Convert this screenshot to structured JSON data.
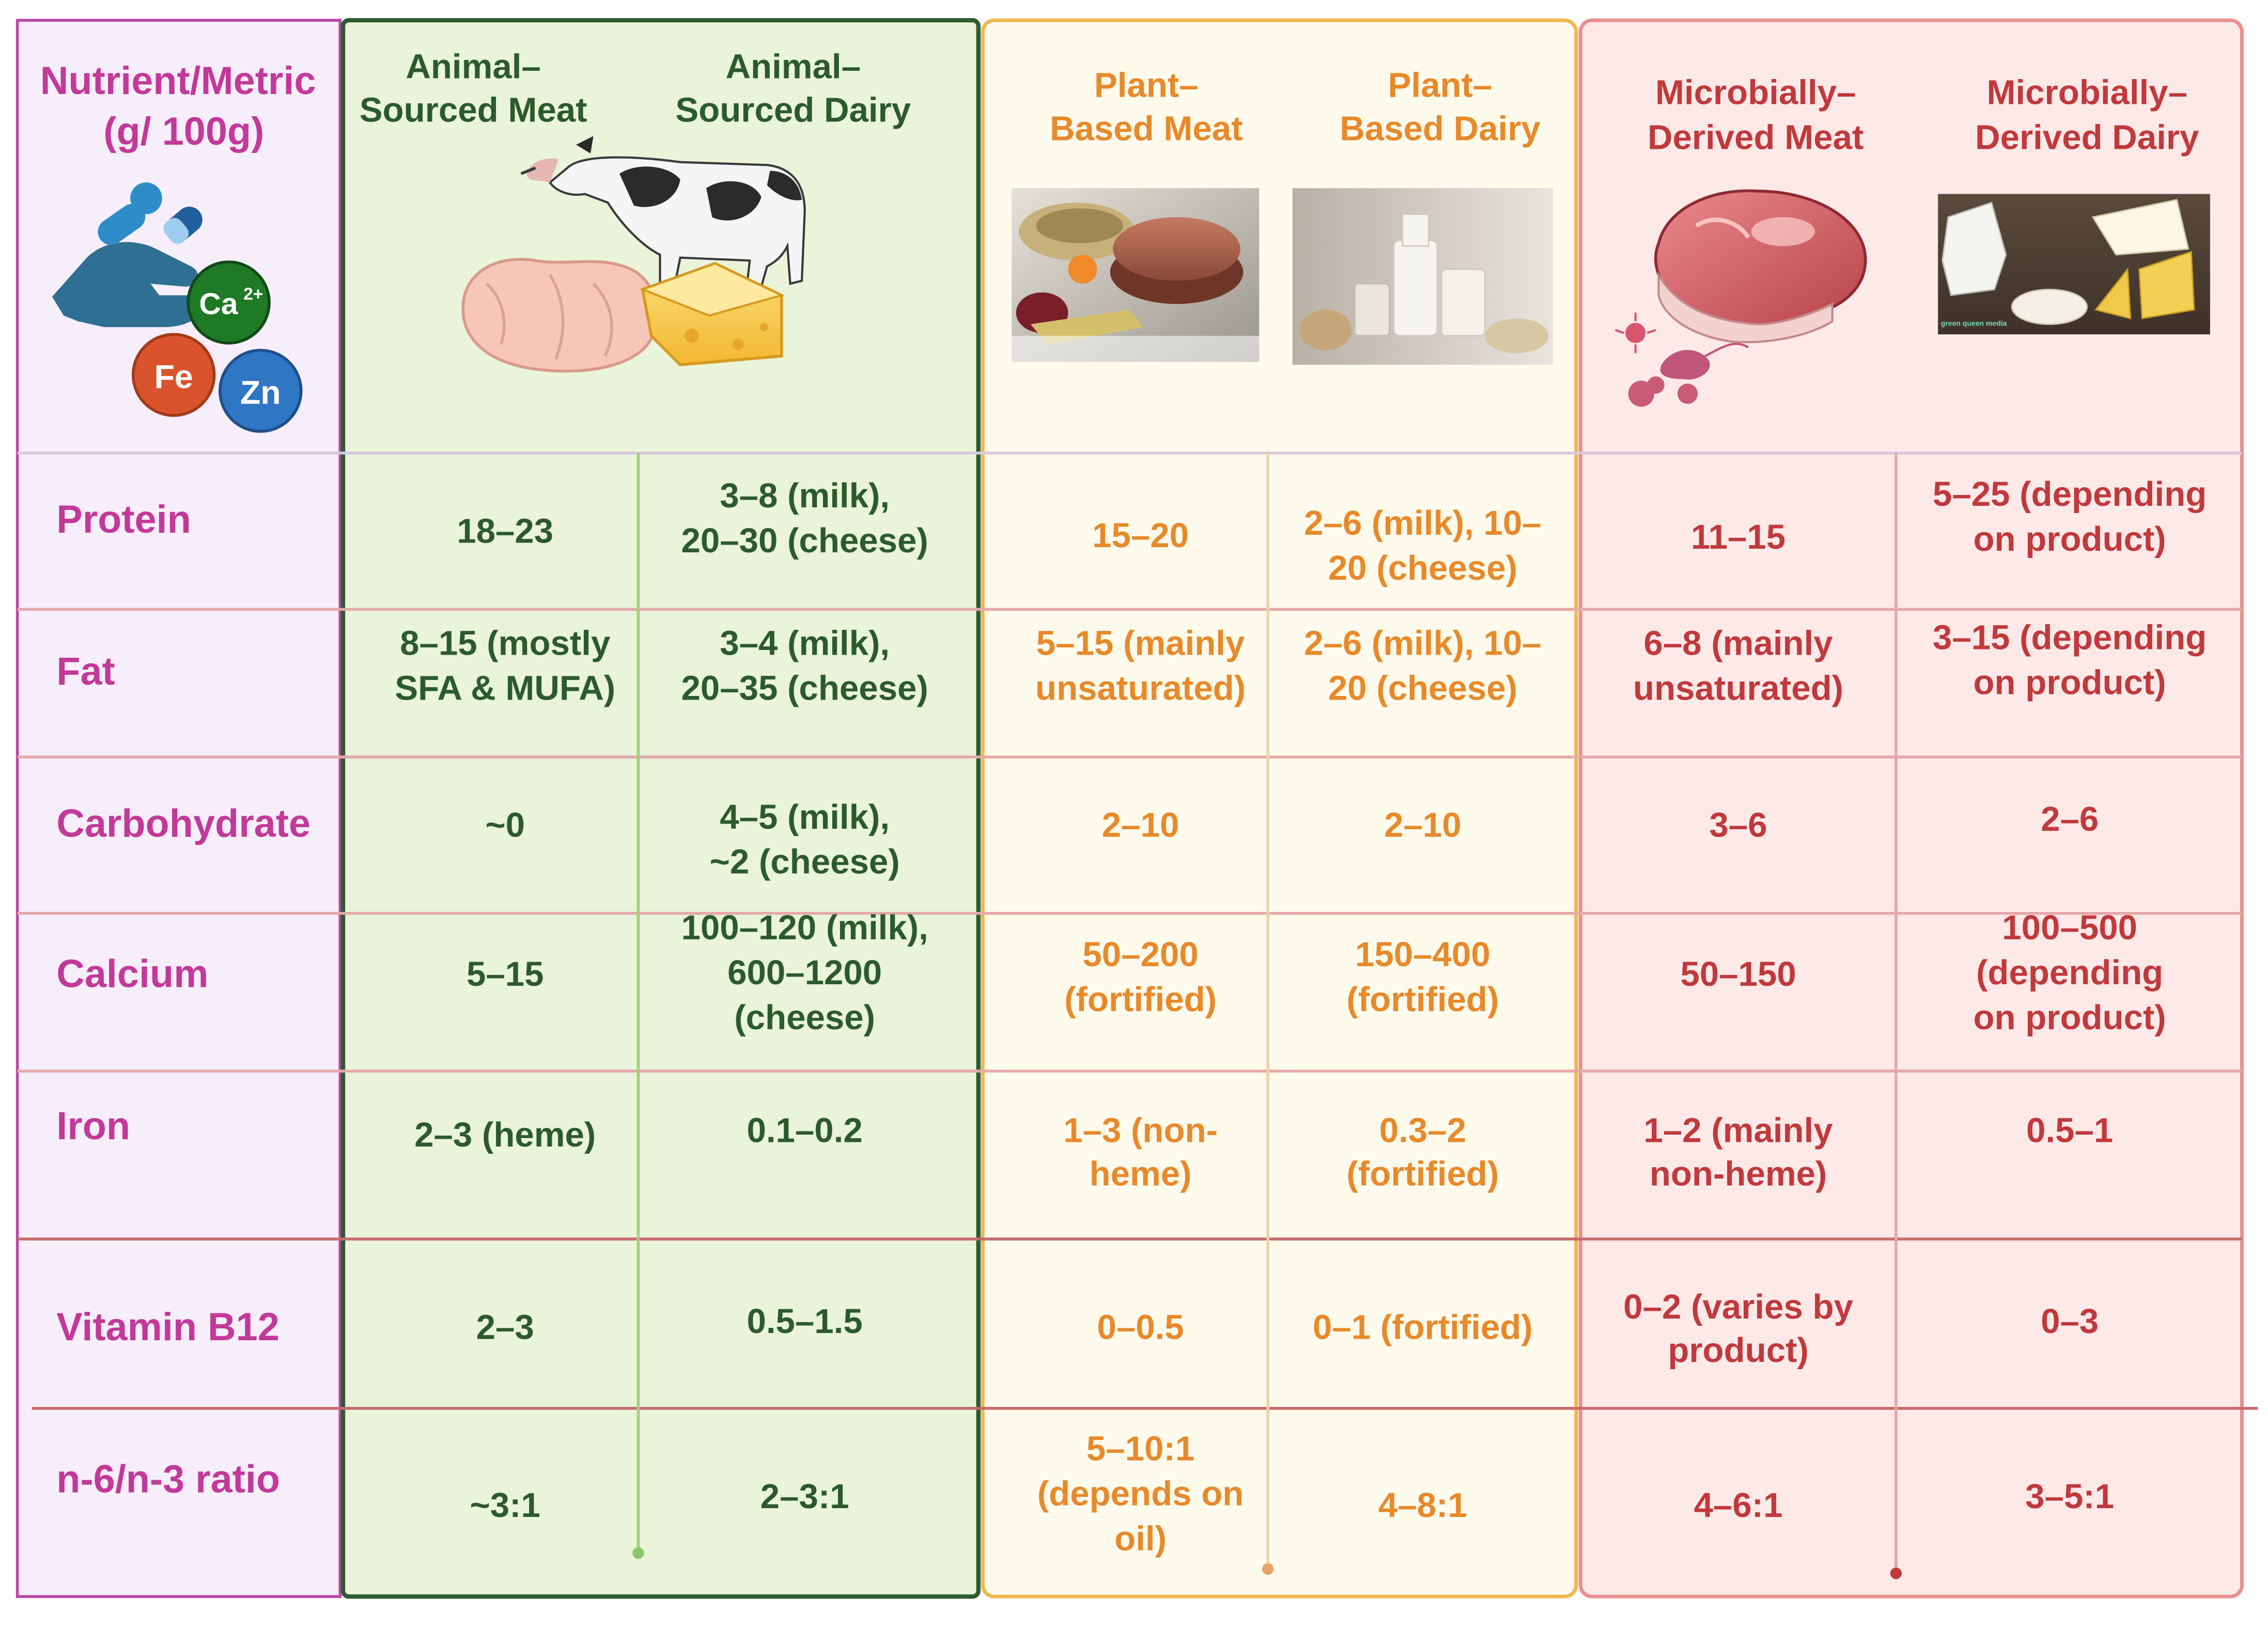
{
  "header": {
    "metric_label_line1": "Nutrient/Metric",
    "metric_label_line2": "(g/ 100g)",
    "columns": [
      {
        "line1": "Animal–",
        "line2": "Sourced Meat"
      },
      {
        "line1": "Animal–",
        "line2": "Sourced Dairy"
      },
      {
        "line1": "Plant–",
        "line2": "Based Meat"
      },
      {
        "line1": "Plant–",
        "line2": "Based Dairy"
      },
      {
        "line1": "Microbially–",
        "line2": "Derived Meat"
      },
      {
        "line1": "Microbially–",
        "line2": "Derived  Dairy"
      }
    ],
    "icon_badges": {
      "calcium": "Ca",
      "calcium_charge": "2+",
      "iron": "Fe",
      "zinc": "Zn"
    },
    "dairy_photo_caption": "green queen media"
  },
  "rows": [
    {
      "label": "Protein",
      "cells": [
        [
          "18–23"
        ],
        [
          "3–8 (milk),",
          "20–30 (cheese)"
        ],
        [
          "15–20"
        ],
        [
          "2–6 (milk), 10–",
          "20 (cheese)"
        ],
        [
          "11–15"
        ],
        [
          "5–25 (depending",
          "on product)"
        ]
      ]
    },
    {
      "label": "Fat",
      "cells": [
        [
          "8–15 (mostly",
          "SFA & MUFA)"
        ],
        [
          "3–4 (milk),",
          "20–35 (cheese)"
        ],
        [
          "5–15 (mainly",
          "unsaturated)"
        ],
        [
          "2–6 (milk), 10–",
          "20 (cheese)"
        ],
        [
          "6–8 (mainly",
          "unsaturated)"
        ],
        [
          "3–15 (depending",
          "on product)"
        ]
      ]
    },
    {
      "label": "Carbohydrate",
      "cells": [
        [
          "~0"
        ],
        [
          "4–5 (milk),",
          "~2 (cheese)"
        ],
        [
          "2–10"
        ],
        [
          "2–10"
        ],
        [
          "3–6"
        ],
        [
          "2–6"
        ]
      ]
    },
    {
      "label": "Calcium",
      "cells": [
        [
          "5–15"
        ],
        [
          "100–120 (milk),",
          "600–1200",
          "(cheese)"
        ],
        [
          "50–200",
          "(fortified)"
        ],
        [
          "150–400",
          "(fortified)"
        ],
        [
          "50–150"
        ],
        [
          "100–500",
          "(depending",
          "on product)"
        ]
      ]
    },
    {
      "label": "Iron",
      "cells": [
        [
          "2–3 (heme)"
        ],
        [
          "0.1–0.2"
        ],
        [
          "1–3 (non-",
          "heme)"
        ],
        [
          "0.3–2",
          "(fortified)"
        ],
        [
          "1–2 (mainly",
          "non-heme)"
        ],
        [
          "0.5–1"
        ]
      ]
    },
    {
      "label": "Vitamin B12",
      "cells": [
        [
          "2–3"
        ],
        [
          "0.5–1.5"
        ],
        [
          "0–0.5"
        ],
        [
          "0–1 (fortified)"
        ],
        [
          "0–2 (varies by",
          "product)"
        ],
        [
          "0–3"
        ]
      ]
    },
    {
      "label": "n-6/n-3 ratio",
      "cells": [
        [
          "~3:1"
        ],
        [
          "2–3:1"
        ],
        [
          "5–10:1",
          "(depends on",
          "oil)"
        ],
        [
          "4–8:1"
        ],
        [
          "4–6:1"
        ],
        [
          "3–5:1"
        ]
      ]
    }
  ],
  "colors": {
    "metric_text": "#c2399a",
    "animal_text": "#2c5a2c",
    "plant_text": "#e8892a",
    "microbial_text": "#c0393c",
    "metric_bg": "#f6eefa",
    "animal_bg": "#e9f4da",
    "plant_bg": "#fefaec",
    "microbial_bg": "#fde9e8",
    "animal_border": "#2f5b30",
    "plant_border": "#f1b74f",
    "microbial_border": "#e9908f"
  },
  "icons": {
    "metric": "hand-holding-pills-minerals-icon",
    "animal": "cow-chicken-cheese-illustration",
    "plant_meat": "plant-based-burger-photo",
    "plant_dairy": "plant-milk-photo",
    "microbial_meat": "raw-meat-microbes-illustration",
    "microbial_dairy": "dairy-products-photo"
  }
}
